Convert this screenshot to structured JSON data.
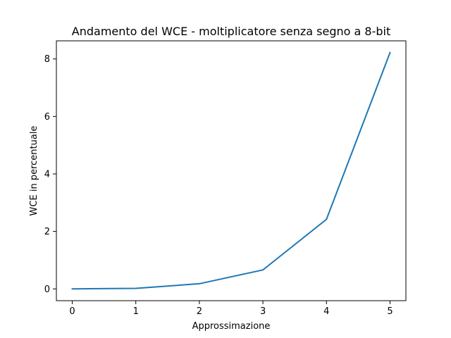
{
  "chart_data": {
    "type": "line",
    "title": "Andamento del WCE - moltiplicatore senza segno a 8-bit",
    "xlabel": "Approssimazione",
    "ylabel": "WCE in percentuale",
    "x": [
      0,
      1,
      2,
      3,
      4,
      5
    ],
    "series": [
      {
        "values": [
          0.0,
          0.02,
          0.18,
          0.66,
          2.42,
          8.22
        ]
      }
    ],
    "xticks": [
      "0",
      "1",
      "2",
      "3",
      "4",
      "5"
    ],
    "yticks": [
      "0",
      "2",
      "4",
      "6",
      "8"
    ],
    "xlim": [
      -0.25,
      5.25
    ],
    "ylim": [
      -0.41,
      8.63
    ],
    "grid": false,
    "line_color": "#1f77b4"
  }
}
